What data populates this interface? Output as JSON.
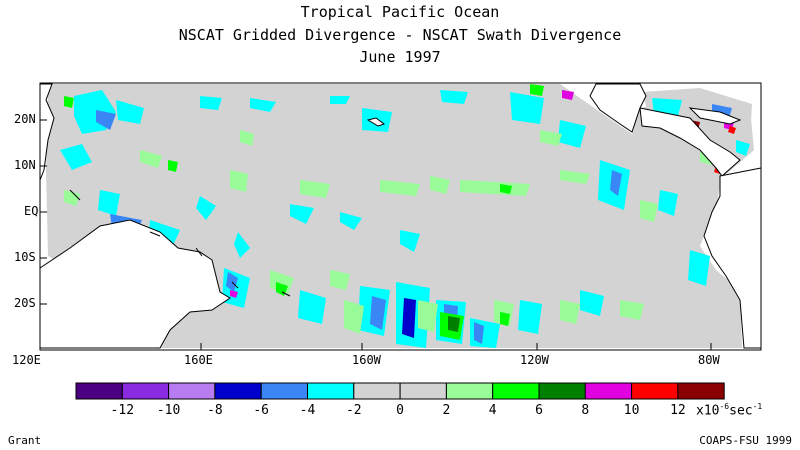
{
  "title": {
    "line1": "Tropical Pacific Ocean",
    "line2": "NSCAT Gridded Divergence - NSCAT Swath Divergence",
    "line3": "June 1997"
  },
  "axes": {
    "lat_labels": [
      "20N",
      "10N",
      "EQ",
      "10S",
      "20S"
    ],
    "lon_labels": [
      "120E",
      "160E",
      "160W",
      "120W",
      "80W"
    ]
  },
  "colorbar": {
    "colors": [
      "#4b0082",
      "#8a2be2",
      "#b77cf0",
      "#0000cd",
      "#3b86f5",
      "#00ffff",
      "#d3d3d3",
      "#d3d3d3",
      "#98fb98",
      "#00ff00",
      "#008000",
      "#e000e0",
      "#ff0000",
      "#8b0000"
    ],
    "tick_labels": [
      "-12",
      "-10",
      "-8",
      "-6",
      "-4",
      "-2",
      "0",
      "2",
      "4",
      "6",
      "8",
      "10",
      "12"
    ],
    "unit_prefix": "x10",
    "unit_exp": "-6",
    "unit_suffix": "sec",
    "unit_suffix_exp": "-1"
  },
  "colors": {
    "ocean_base": "#d3d3d3",
    "land": "#ffffff",
    "coast": "#000000"
  },
  "footer": {
    "left": "Grant",
    "right": "COAPS-FSU 1999"
  }
}
